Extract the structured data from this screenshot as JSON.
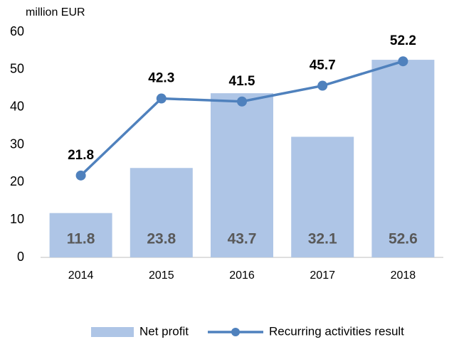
{
  "chart_data": {
    "type": "combo",
    "y_axis_label": "million EUR",
    "categories": [
      "2014",
      "2015",
      "2016",
      "2017",
      "2018"
    ],
    "series": [
      {
        "name": "Net profit",
        "type": "bar",
        "color": "#aec5e6",
        "values": [
          11.8,
          23.8,
          43.7,
          32.1,
          52.6
        ]
      },
      {
        "name": "Recurring activities result",
        "type": "line",
        "color": "#4f81bd",
        "values": [
          21.8,
          42.3,
          41.5,
          45.7,
          52.2
        ]
      }
    ],
    "ylim": [
      0,
      60
    ],
    "yticks": [
      0,
      10,
      20,
      30,
      40,
      50,
      60
    ],
    "grid": false,
    "legend": "bottom"
  }
}
